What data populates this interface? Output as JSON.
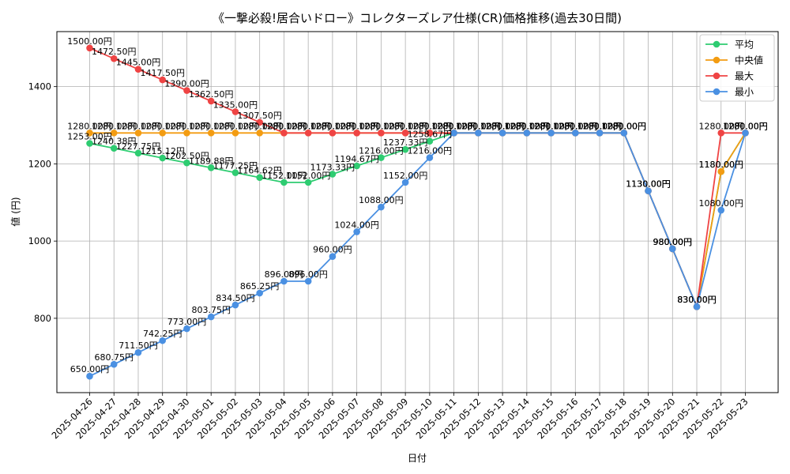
{
  "chart_data": {
    "type": "line",
    "title": "《一撃必殺!居合いドロー》コレクターズレア仕様(CR)価格推移(過去30日間)",
    "xlabel": "日付",
    "ylabel": "値 (円)",
    "x": [
      "2025-04-26",
      "2025-04-27",
      "2025-04-28",
      "2025-04-29",
      "2025-04-30",
      "2025-05-01",
      "2025-05-02",
      "2025-05-03",
      "2025-05-04",
      "2025-05-05",
      "2025-05-06",
      "2025-05-07",
      "2025-05-08",
      "2025-05-09",
      "2025-05-10",
      "2025-05-11",
      "2025-05-12",
      "2025-05-13",
      "2025-05-14",
      "2025-05-15",
      "2025-05-16",
      "2025-05-17",
      "2025-05-18",
      "2025-05-19",
      "2025-05-20",
      "2025-05-21",
      "2025-05-22",
      "2025-05-23"
    ],
    "yticks": [
      800,
      1000,
      1200,
      1400
    ],
    "ylim": [
      607.5,
      1542.5
    ],
    "grid": true,
    "legend_position": "upper right",
    "value_suffix": "円",
    "series": [
      {
        "name": "平均",
        "color": "#2ecc71",
        "values": [
          1253.0,
          1240.38,
          1227.75,
          1215.12,
          1202.5,
          1189.88,
          1177.25,
          1164.62,
          1152.0,
          1152.0,
          1173.33,
          1194.67,
          1216.0,
          1237.33,
          1258.67,
          1280,
          1280,
          1280,
          1280,
          1280,
          1280,
          1280,
          1280,
          1130,
          980,
          830,
          1180,
          1280
        ]
      },
      {
        "name": "中央値",
        "color": "#f39c12",
        "values": [
          1280,
          1280,
          1280,
          1280,
          1280,
          1280,
          1280,
          1280,
          1280,
          1280,
          1280,
          1280,
          1280,
          1280,
          1280,
          1280,
          1280,
          1280,
          1280,
          1280,
          1280,
          1280,
          1280,
          1130,
          980,
          830,
          1180,
          1280
        ]
      },
      {
        "name": "最大",
        "color": "#ef4444",
        "values": [
          1500,
          1472.5,
          1445,
          1417.5,
          1390,
          1362.5,
          1335,
          1307.5,
          1280,
          1280,
          1280,
          1280,
          1280,
          1280,
          1280,
          1280,
          1280,
          1280,
          1280,
          1280,
          1280,
          1280,
          1280,
          1130,
          980,
          830,
          1280,
          1280
        ]
      },
      {
        "name": "最小",
        "color": "#4a90e2",
        "values": [
          650,
          680.75,
          711.5,
          742.25,
          773,
          803.75,
          834.5,
          865.25,
          896,
          896,
          960,
          1024,
          1088,
          1152,
          1216,
          1280,
          1280,
          1280,
          1280,
          1280,
          1280,
          1280,
          1280,
          1130,
          980,
          830,
          1080,
          1280
        ]
      }
    ]
  }
}
